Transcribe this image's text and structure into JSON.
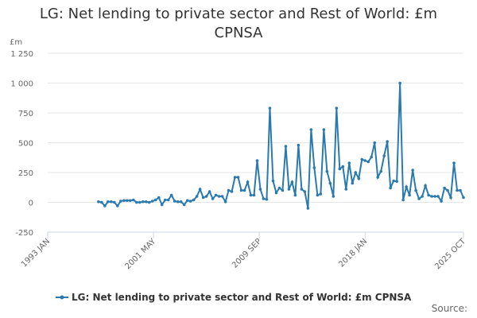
{
  "chart_data": {
    "type": "line",
    "title": "LG: Net lending to private sector and Rest of World: £m CPNSA",
    "y_unit": "£m",
    "source": "Source:",
    "x": [
      "1997 JAN",
      "1997 APR",
      "1997 JUL",
      "1997 OCT",
      "1998 JAN",
      "1998 APR",
      "1998 JUL",
      "1998 OCT",
      "1999 JAN",
      "1999 APR",
      "1999 JUL",
      "1999 OCT",
      "2000 JAN",
      "2000 APR",
      "2000 JUL",
      "2000 OCT",
      "2001 JAN",
      "2001 APR",
      "2001 JUL",
      "2001 OCT",
      "2002 JAN",
      "2002 APR",
      "2002 JUL",
      "2002 OCT",
      "2003 JAN",
      "2003 APR",
      "2003 JUL",
      "2003 OCT",
      "2004 JAN",
      "2004 APR",
      "2004 JUL",
      "2004 OCT",
      "2005 JAN",
      "2005 APR",
      "2005 JUL",
      "2005 OCT",
      "2006 JAN",
      "2006 APR",
      "2006 JUL",
      "2006 OCT",
      "2007 JAN",
      "2007 APR",
      "2007 JUL",
      "2007 OCT",
      "2008 JAN",
      "2008 APR",
      "2008 JUL",
      "2008 OCT",
      "2009 JAN",
      "2009 APR",
      "2009 JUL",
      "2009 OCT",
      "2010 JAN",
      "2010 APR",
      "2010 JUL",
      "2010 OCT",
      "2011 JAN",
      "2011 APR",
      "2011 JUL",
      "2011 OCT",
      "2012 JAN",
      "2012 APR",
      "2012 JUL",
      "2012 OCT",
      "2013 JAN",
      "2013 APR",
      "2013 JUL",
      "2013 OCT",
      "2014 JAN",
      "2014 APR",
      "2014 JUL",
      "2014 OCT",
      "2015 JAN",
      "2015 APR",
      "2015 JUL",
      "2015 OCT",
      "2016 JAN",
      "2016 APR",
      "2016 JUL",
      "2016 OCT",
      "2017 JAN",
      "2017 APR",
      "2017 JUL",
      "2017 OCT",
      "2018 JAN",
      "2018 APR",
      "2018 JUL",
      "2018 OCT",
      "2019 JAN",
      "2019 APR",
      "2019 JUL",
      "2019 OCT",
      "2020 JAN",
      "2020 APR",
      "2020 JUL",
      "2020 OCT",
      "2021 JAN",
      "2021 APR",
      "2021 JUL",
      "2021 OCT",
      "2022 JAN",
      "2022 APR",
      "2022 JUL",
      "2022 OCT",
      "2023 JAN",
      "2023 APR",
      "2023 JUL",
      "2023 OCT",
      "2024 JAN",
      "2024 APR",
      "2024 JUL",
      "2024 OCT",
      "2025 JAN",
      "2025 APR",
      "2025 JUL",
      "2025 OCT"
    ],
    "series": [
      {
        "name": "LG: Net lending to private sector and Rest of World: £m CPNSA",
        "color": "#2a7ab0",
        "values": [
          5,
          0,
          -30,
          5,
          5,
          0,
          -30,
          10,
          15,
          15,
          15,
          20,
          0,
          0,
          5,
          5,
          0,
          10,
          20,
          40,
          -20,
          20,
          20,
          60,
          10,
          5,
          5,
          -20,
          15,
          10,
          20,
          50,
          110,
          40,
          50,
          90,
          30,
          60,
          50,
          50,
          5,
          100,
          90,
          210,
          210,
          100,
          100,
          170,
          60,
          60,
          350,
          110,
          30,
          25,
          790,
          180,
          80,
          120,
          100,
          470,
          110,
          170,
          60,
          480,
          110,
          90,
          -50,
          610,
          290,
          60,
          70,
          610,
          260,
          160,
          50,
          790,
          280,
          300,
          110,
          330,
          160,
          250,
          200,
          360,
          350,
          340,
          380,
          500,
          210,
          260,
          390,
          510,
          120,
          180,
          175,
          1000,
          20,
          130,
          60,
          270,
          100,
          30,
          50,
          140,
          60,
          50,
          50,
          50,
          10,
          120,
          100,
          40,
          330,
          100,
          100,
          40
        ]
      }
    ],
    "xlim": [
      "1993 JAN",
      "2025 OCT"
    ],
    "xticks": [
      "1993 JAN",
      "2001 MAY",
      "2009 SEP",
      "2018 JAN",
      "2025 OCT"
    ],
    "ylim": [
      -250,
      1250
    ],
    "yticks": [
      -250,
      0,
      250,
      500,
      750,
      {
        "value": 1000,
        "label": "1 000"
      },
      {
        "value": 1250,
        "label": "1 250"
      }
    ],
    "grid": true
  }
}
